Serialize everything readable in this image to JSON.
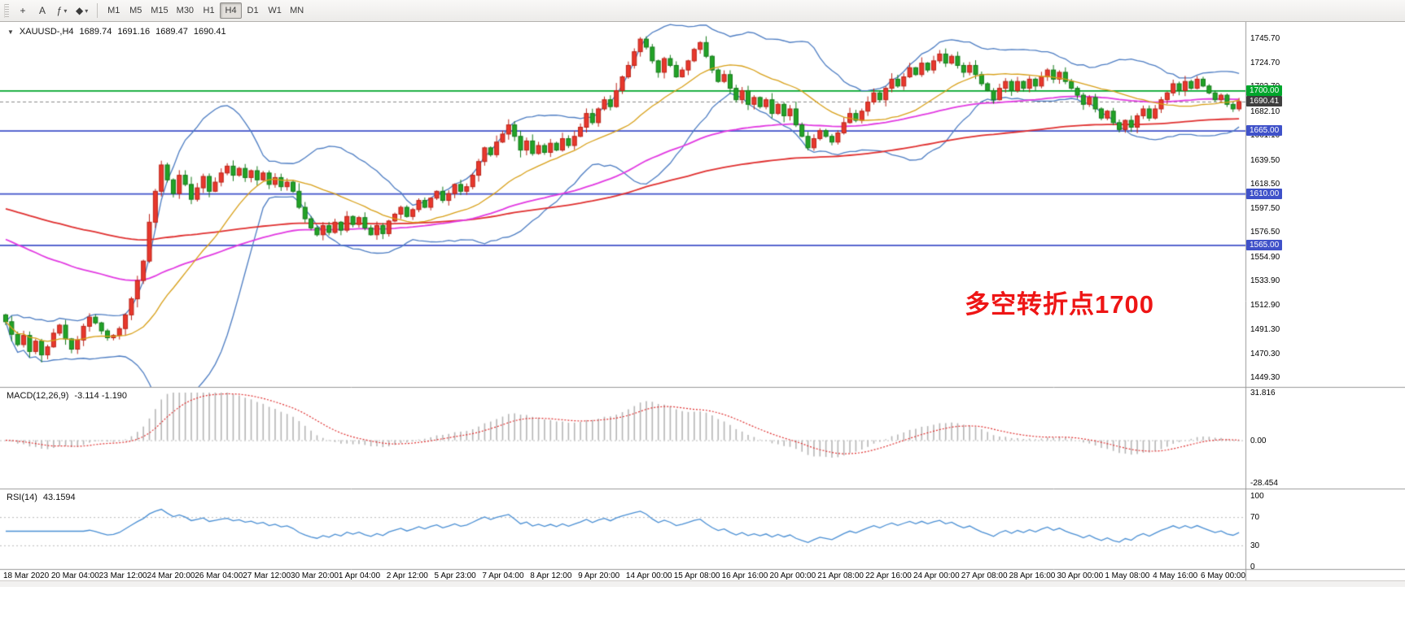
{
  "toolbar": {
    "tools": [
      {
        "name": "crosshair",
        "glyph": "+",
        "dropdown": false
      },
      {
        "name": "text-label",
        "glyph": "A",
        "dropdown": false
      },
      {
        "name": "indicators-list",
        "glyph": "ƒ",
        "dropdown": true
      },
      {
        "name": "templates",
        "glyph": "◆",
        "dropdown": true
      }
    ],
    "timeframes": [
      "M1",
      "M5",
      "M15",
      "M30",
      "H1",
      "H4",
      "D1",
      "W1",
      "MN"
    ],
    "active_timeframe": "H4"
  },
  "chart": {
    "symbol_timeframe": "XAUUSD-,H4",
    "ohlc": {
      "o": "1689.74",
      "h": "1691.16",
      "l": "1689.47",
      "c": "1690.41"
    },
    "annotation": {
      "text": "多空转折点1700",
      "color": "#ee1515"
    },
    "levels": [
      {
        "value": 1700.0,
        "label": "1700.00",
        "color": "#00a62c"
      },
      {
        "value": 1665.0,
        "label": "1665.00",
        "color": "#3f51c9"
      },
      {
        "value": 1610.0,
        "label": "1610.00",
        "color": "#3f51c9"
      },
      {
        "value": 1565.0,
        "label": "1565.00",
        "color": "#3f51c9"
      }
    ],
    "current_price": {
      "value": 1690.41,
      "label": "1690.41",
      "badge_bg": "#3f3f3f"
    },
    "price_axis_labels": [
      "1745.70",
      "1724.70",
      "1703.70",
      "1682.10",
      "1661.10",
      "1639.50",
      "1618.50",
      "1597.50",
      "1576.50",
      "1554.90",
      "1533.90",
      "1512.90",
      "1491.30",
      "1470.30",
      "1449.30"
    ],
    "time_axis_labels": [
      "18 Mar 2020",
      "20 Mar 04:00",
      "23 Mar 12:00",
      "24 Mar 20:00",
      "26 Mar 04:00",
      "27 Mar 12:00",
      "30 Mar 20:00",
      "1 Apr 04:00",
      "2 Apr 12:00",
      "5 Apr 23:00",
      "7 Apr 04:00",
      "8 Apr 12:00",
      "9 Apr 20:00",
      "14 Apr 00:00",
      "15 Apr 08:00",
      "16 Apr 16:00",
      "20 Apr 00:00",
      "21 Apr 08:00",
      "22 Apr 16:00",
      "24 Apr 00:00",
      "27 Apr 08:00",
      "28 Apr 16:00",
      "30 Apr 00:00",
      "1 May 08:00",
      "4 May 16:00",
      "6 May 00:00"
    ]
  },
  "indicators": {
    "macd": {
      "name": "MACD(12,26,9)",
      "values": "-3.114 -1.190",
      "axis_labels": [
        "31.816",
        "0.00",
        "-28.454"
      ],
      "fast": 12,
      "slow": 26,
      "signal": 9
    },
    "rsi": {
      "name": "RSI(14)",
      "value": "43.1594",
      "axis_labels": [
        "100",
        "70",
        "30",
        "0"
      ],
      "period": 14,
      "levels": [
        70,
        30
      ]
    }
  },
  "chart_data": {
    "type": "candlestick",
    "symbol": "XAUUSD-",
    "timeframe": "H4",
    "price_axis_range": [
      1441,
      1760
    ],
    "first_open": 1504,
    "closes": [
      1498,
      1487,
      1478,
      1486,
      1472,
      1481,
      1469,
      1476,
      1488,
      1495,
      1483,
      1474,
      1482,
      1494,
      1502,
      1497,
      1490,
      1484,
      1486,
      1492,
      1504,
      1518,
      1534,
      1551,
      1585,
      1612,
      1635,
      1622,
      1610,
      1626,
      1618,
      1605,
      1615,
      1625,
      1612,
      1620,
      1628,
      1634,
      1626,
      1632,
      1624,
      1630,
      1622,
      1628,
      1618,
      1624,
      1616,
      1620,
      1612,
      1598,
      1588,
      1580,
      1574,
      1582,
      1576,
      1585,
      1578,
      1590,
      1583,
      1589,
      1580,
      1574,
      1582,
      1575,
      1586,
      1592,
      1598,
      1590,
      1596,
      1604,
      1598,
      1606,
      1612,
      1604,
      1610,
      1618,
      1612,
      1616,
      1626,
      1638,
      1650,
      1644,
      1655,
      1662,
      1670,
      1660,
      1648,
      1656,
      1645,
      1652,
      1646,
      1654,
      1648,
      1658,
      1652,
      1660,
      1668,
      1680,
      1672,
      1684,
      1692,
      1686,
      1700,
      1712,
      1722,
      1734,
      1745,
      1738,
      1726,
      1716,
      1728,
      1722,
      1712,
      1718,
      1726,
      1736,
      1742,
      1730,
      1718,
      1708,
      1714,
      1702,
      1692,
      1700,
      1688,
      1694,
      1686,
      1692,
      1680,
      1688,
      1678,
      1684,
      1670,
      1660,
      1650,
      1658,
      1665,
      1660,
      1655,
      1663,
      1672,
      1680,
      1674,
      1682,
      1690,
      1698,
      1692,
      1702,
      1710,
      1704,
      1712,
      1720,
      1714,
      1724,
      1718,
      1726,
      1732,
      1724,
      1730,
      1722,
      1716,
      1722,
      1714,
      1706,
      1700,
      1692,
      1702,
      1708,
      1700,
      1708,
      1702,
      1710,
      1704,
      1712,
      1718,
      1710,
      1716,
      1708,
      1702,
      1696,
      1688,
      1694,
      1684,
      1676,
      1682,
      1672,
      1666,
      1674,
      1668,
      1678,
      1684,
      1676,
      1684,
      1692,
      1698,
      1706,
      1700,
      1708,
      1702,
      1710,
      1704,
      1698,
      1692,
      1696,
      1688,
      1684,
      1690.4
    ],
    "overlays": {
      "bollinger": {
        "period": 20,
        "deviation": 2
      },
      "ma_fast_yellow": {
        "period": 20,
        "type": "sma"
      },
      "ma_mid_magenta": {
        "period": 72,
        "type": "ema",
        "seed": 1572
      },
      "ma_slow_red": {
        "period": 150,
        "type": "ema",
        "seed": 1598
      }
    }
  },
  "colors": {
    "candle_up_fill": "#e8382d",
    "candle_up_stroke": "#bb2318",
    "candle_down_fill": "#22a327",
    "candle_down_stroke": "#147a19",
    "bollinger": "#4d7dc3",
    "ma_yellow": "#d8a018",
    "ma_magenta": "#e23ae2",
    "ma_red": "#e03030",
    "current_price_line": "#888888",
    "macd_histogram": "#b6b6b6",
    "macd_signal": "#e03030",
    "indicator_level_line": "#bcbcbc",
    "rsi_line": "#4a8fd4",
    "panel_border": "#9a9a9a"
  }
}
